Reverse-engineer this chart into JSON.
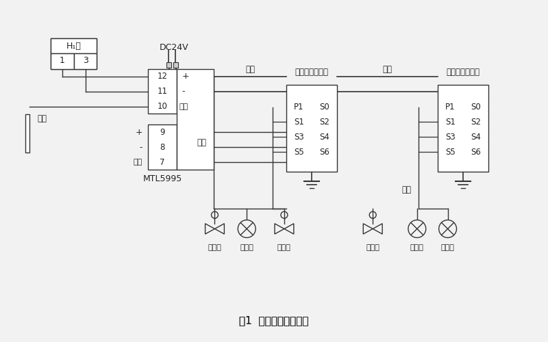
{
  "title": "图1  总线仪表接入方式",
  "bg_color": "#f2f2f2",
  "line_color": "#333333",
  "labels": {
    "H1_card": "H₁卡",
    "dc24v": "DC24V",
    "MTL": "MTL5995",
    "ground": "接地",
    "shield_right": "屏蔽",
    "shield_left": "屏蔽",
    "trunk1": "干线",
    "trunk2": "干线",
    "branch1": "支线",
    "branch2": "支线",
    "jbox1": "现场总线接线盒",
    "jbox2": "现场总线接线盒",
    "cv1": "控制阀",
    "tx1": "变送器",
    "cv2": "控制阀",
    "cv3": "控制阀",
    "tx2": "变送器",
    "tx3": "变送器",
    "plus": "+",
    "minus": "-",
    "row_nums_top": [
      "12",
      "11",
      "10"
    ],
    "row_nums_bot": [
      "9",
      "8",
      "7"
    ],
    "slot_pairs": [
      [
        "P1",
        "S0"
      ],
      [
        "S1",
        "S2"
      ],
      [
        "S3",
        "S4"
      ],
      [
        "S5",
        "S6"
      ]
    ]
  }
}
